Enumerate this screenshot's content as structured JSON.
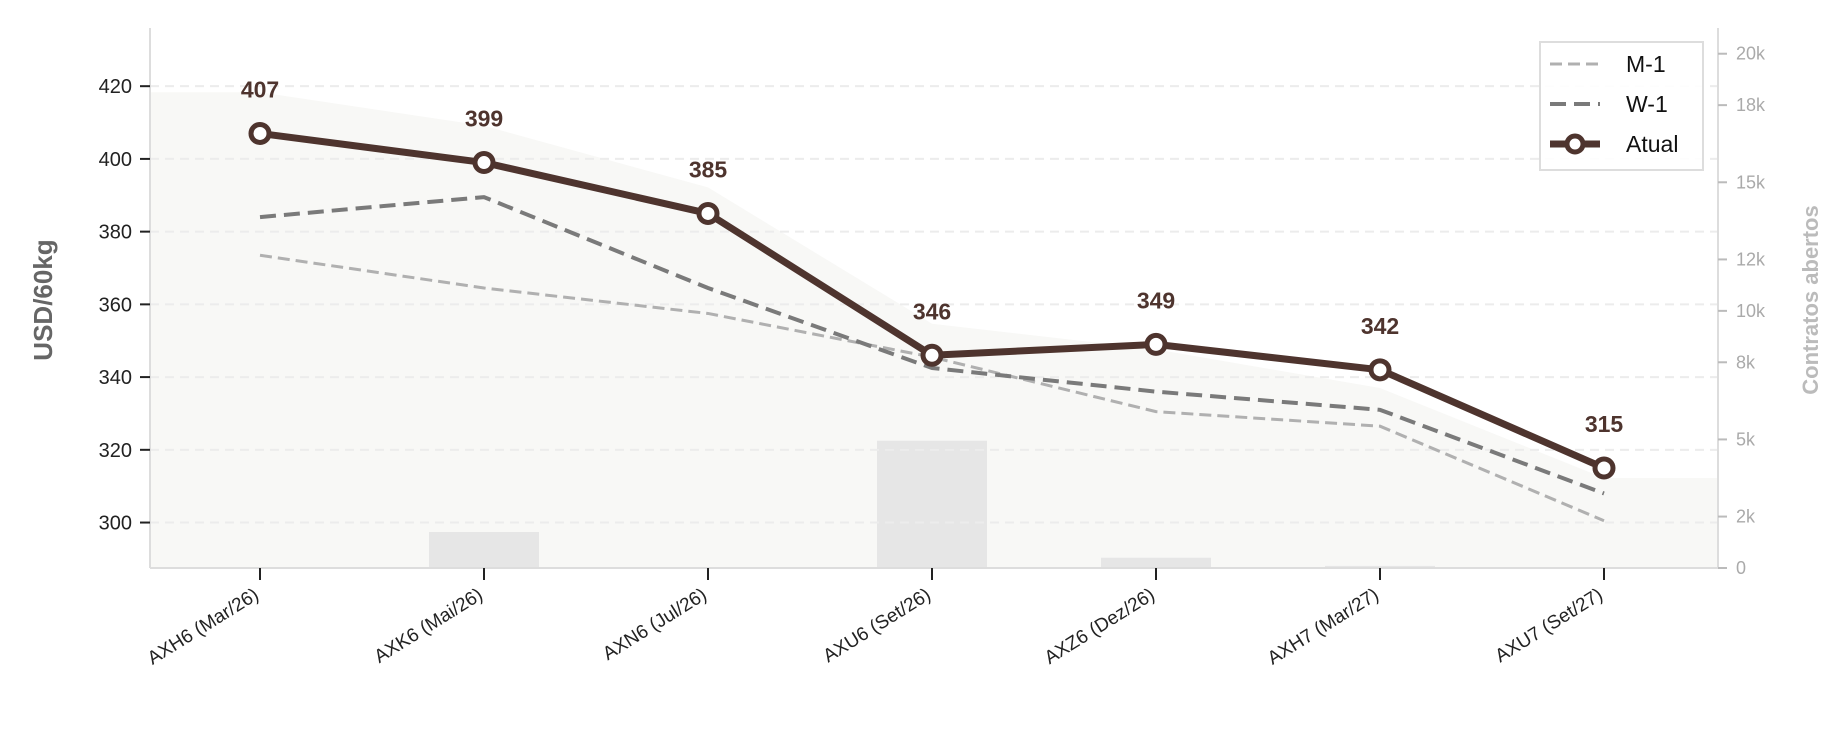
{
  "chart_data": {
    "type": "line",
    "categories": [
      "AXH6 (Mar/26)",
      "AXK6 (Mai/26)",
      "AXN6 (Jul/26)",
      "AXU6 (Set/26)",
      "AXZ6 (Dez/26)",
      "AXH7 (Mar/27)",
      "AXU7 (Set/27)"
    ],
    "series": [
      {
        "name": "M-1",
        "values": [
          373.5,
          364.5,
          357.5,
          345.5,
          330.5,
          326.5,
          300.5
        ],
        "color": "#b0b0b0",
        "style": "dashed"
      },
      {
        "name": "W-1",
        "values": [
          384,
          389.5,
          364.5,
          342.5,
          336,
          331,
          308
        ],
        "color": "#7a7a7a",
        "style": "dashed"
      },
      {
        "name": "Atual",
        "values": [
          407,
          399,
          385,
          346,
          349,
          342,
          315
        ],
        "color": "#4e342e",
        "style": "solid-marker"
      }
    ],
    "data_labels": [
      "407",
      "399",
      "385",
      "346",
      "349",
      "342",
      "315"
    ],
    "open_interest": {
      "values": [
        0,
        1400,
        0,
        4950,
        400,
        80,
        0
      ],
      "color": "#e6e6e6"
    },
    "background_area": {
      "x": [
        -0.5,
        0,
        1,
        2,
        3,
        4,
        5,
        6,
        6.5
      ],
      "values": [
        18500,
        18500,
        17200,
        14800,
        9500,
        8500,
        7000,
        3500,
        3500
      ],
      "color": "#f8f8f6"
    },
    "ylabel": "USD/60kg",
    "y2label": "Contratos abertos",
    "yticks": [
      300,
      320,
      340,
      360,
      380,
      400,
      420
    ],
    "ylim": [
      287.5,
      436
    ],
    "y2ticks": [
      0,
      2000,
      4000,
      6000,
      8000,
      10000,
      12000,
      14000,
      16000,
      18000,
      20000
    ],
    "y2tick_labels": [
      "0",
      "2k",
      "5k",
      "8k",
      "10k",
      "12k",
      "15k",
      "18k",
      "20k"
    ],
    "y2ticks_shown": [
      0,
      2000,
      5000,
      8000,
      10000,
      12000,
      15000,
      18000,
      20000
    ],
    "y2lim": [
      0,
      21000
    ],
    "grid": "horizontal-dashed",
    "legend_position": "top-right"
  }
}
